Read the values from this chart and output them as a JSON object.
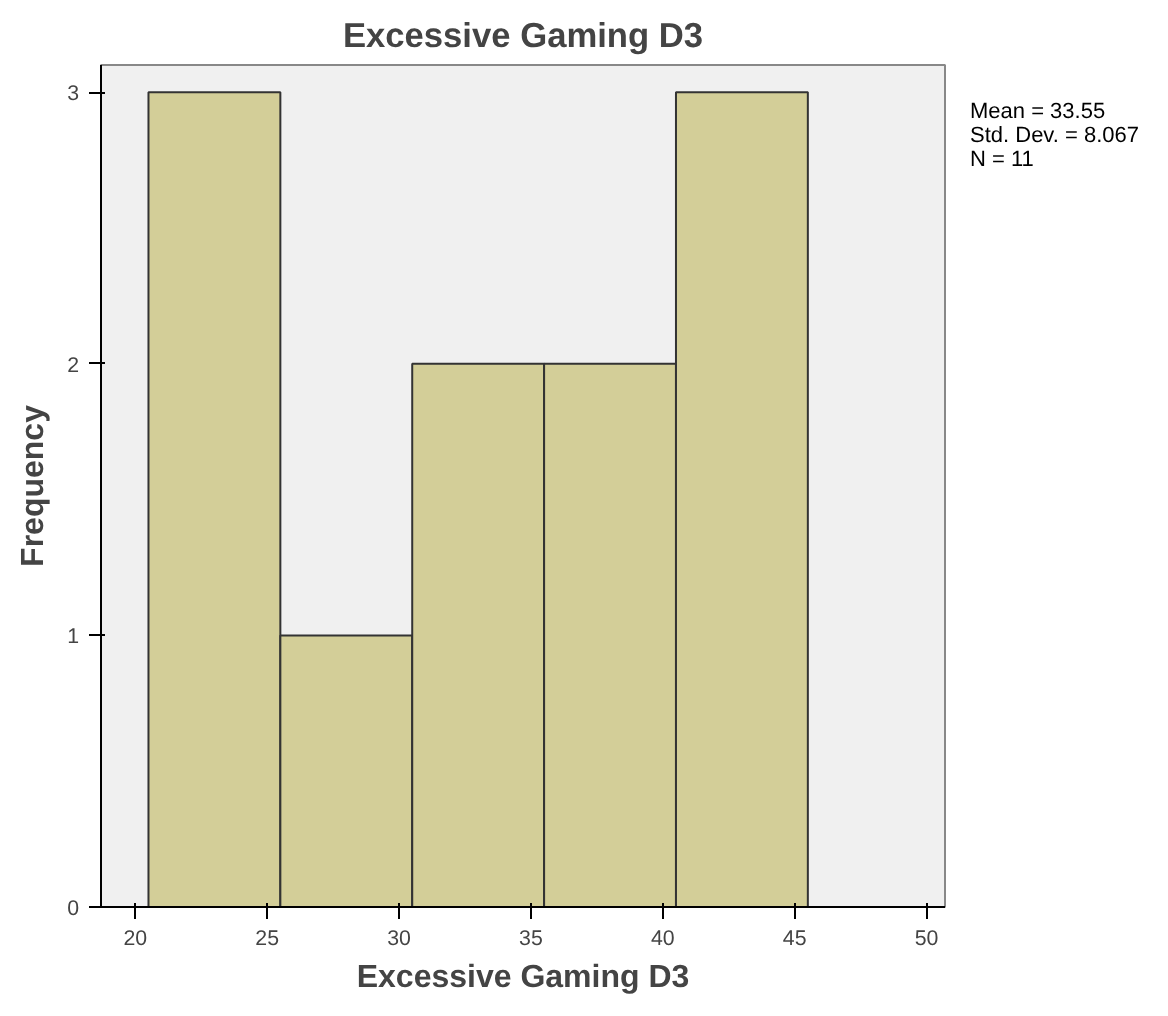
{
  "chart_data": {
    "type": "histogram",
    "title": "Excessive Gaming D3",
    "xlabel": "Excessive Gaming D3",
    "ylabel": "Frequency",
    "bins": [
      20.5,
      25.5,
      30.5,
      35.5,
      40.5,
      45.5
    ],
    "values": [
      3,
      1,
      2,
      2,
      3
    ],
    "color": "#d3ce98",
    "xlim": [
      18.7,
      50.7
    ],
    "ylim": [
      0,
      3.1
    ],
    "xticks": [
      20,
      25,
      30,
      35,
      40,
      45,
      50
    ],
    "yticks": [
      0,
      1,
      2,
      3
    ],
    "annotations": [
      "Mean = 33.55",
      "Std. Dev. = 8.067",
      "N = 11"
    ],
    "grid": false
  }
}
